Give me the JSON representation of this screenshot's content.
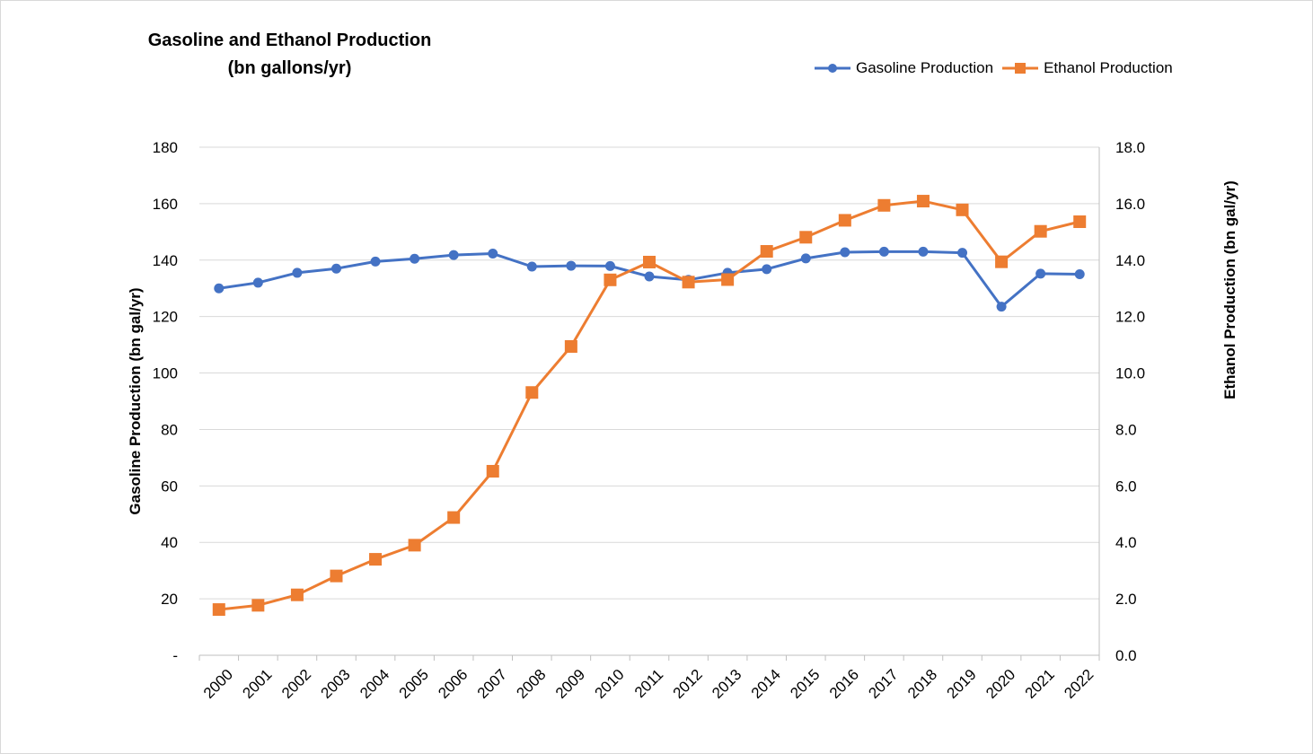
{
  "chart_data": {
    "type": "line",
    "title_line1": "Gasoline and Ethanol Production",
    "title_line2": "(bn gallons/yr)",
    "categories": [
      "2000",
      "2001",
      "2002",
      "2003",
      "2004",
      "2005",
      "2006",
      "2007",
      "2008",
      "2009",
      "2010",
      "2011",
      "2012",
      "2013",
      "2014",
      "2015",
      "2016",
      "2017",
      "2018",
      "2019",
      "2020",
      "2021",
      "2022"
    ],
    "series": [
      {
        "name": "Gasoline Production",
        "axis": "left",
        "color": "#4472C4",
        "marker": "circle",
        "values": [
          130,
          132,
          135.5,
          137,
          139.5,
          140.5,
          141.8,
          142.3,
          137.7,
          138,
          137.9,
          134.2,
          133,
          135.5,
          136.8,
          140.6,
          142.8,
          143,
          143,
          142.6,
          123.5,
          135.2,
          135
        ]
      },
      {
        "name": "Ethanol Production",
        "axis": "right",
        "color": "#ED7D31",
        "marker": "square",
        "values": [
          1.62,
          1.77,
          2.14,
          2.81,
          3.4,
          3.9,
          4.88,
          6.52,
          9.31,
          10.94,
          13.3,
          13.93,
          13.22,
          13.31,
          14.31,
          14.81,
          15.41,
          15.94,
          16.09,
          15.78,
          13.94,
          15.02,
          15.36
        ]
      }
    ],
    "y_left": {
      "label": "Gasoline Production (bn gal/yr)",
      "min": 0,
      "max": 180,
      "ticks": [
        "-",
        "20",
        "40",
        "60",
        "80",
        "100",
        "120",
        "140",
        "160",
        "180"
      ]
    },
    "y_right": {
      "label": "Ethanol Production (bn gal/yr)",
      "min": 0,
      "max": 18,
      "ticks": [
        "0.0",
        "2.0",
        "4.0",
        "6.0",
        "8.0",
        "10.0",
        "12.0",
        "14.0",
        "16.0",
        "18.0"
      ]
    },
    "grid": true,
    "legend": "top-right"
  }
}
